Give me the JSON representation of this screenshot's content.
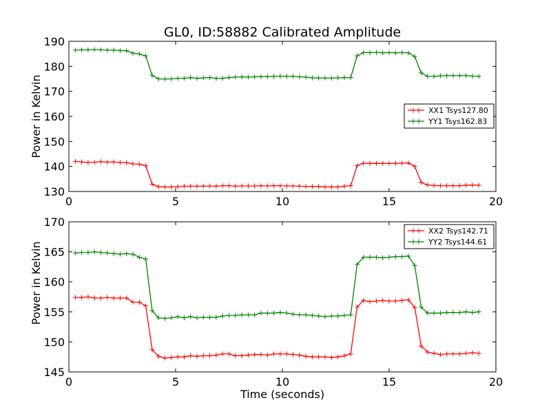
{
  "chart_data": [
    {
      "type": "line",
      "title": "GL0, ID:58882 Calibrated Amplitude",
      "xlabel": "",
      "ylabel": "Power in Kelvin",
      "xlim": [
        0,
        20
      ],
      "ylim": [
        130,
        190
      ],
      "xticks": [
        0,
        5,
        10,
        15,
        20
      ],
      "yticks": [
        130,
        140,
        150,
        160,
        170,
        180,
        190
      ],
      "grid": false,
      "legend_position": "center-right",
      "x": [
        0.3,
        0.6,
        0.9,
        1.2,
        1.5,
        1.8,
        2.1,
        2.4,
        2.7,
        3.0,
        3.3,
        3.6,
        3.9,
        4.2,
        4.5,
        4.8,
        5.1,
        5.4,
        5.7,
        6.0,
        6.3,
        6.6,
        6.9,
        7.2,
        7.5,
        7.8,
        8.1,
        8.4,
        8.7,
        9.0,
        9.3,
        9.6,
        9.9,
        10.2,
        10.5,
        10.8,
        11.1,
        11.4,
        11.7,
        12.0,
        12.3,
        12.6,
        12.9,
        13.2,
        13.5,
        13.8,
        14.1,
        14.4,
        14.7,
        15.0,
        15.3,
        15.6,
        15.9,
        16.2,
        16.5,
        16.8,
        17.1,
        17.4,
        17.7,
        18.0,
        18.3,
        18.6,
        18.9,
        19.2
      ],
      "series": [
        {
          "name": "XX1 Tsys127.80",
          "color": "#ff0000",
          "values": [
            142.0,
            141.8,
            141.6,
            141.7,
            141.9,
            141.7,
            141.8,
            141.6,
            141.5,
            141.0,
            140.9,
            140.3,
            132.9,
            131.9,
            131.8,
            131.8,
            131.9,
            132.1,
            132.1,
            132.1,
            132.1,
            132.2,
            132.1,
            132.3,
            132.3,
            132.1,
            132.2,
            132.2,
            132.2,
            132.3,
            132.2,
            132.3,
            132.3,
            132.2,
            132.2,
            132.1,
            132.0,
            132.0,
            132.0,
            131.8,
            131.8,
            131.8,
            132.1,
            132.3,
            140.3,
            141.3,
            141.2,
            141.2,
            141.2,
            141.2,
            141.2,
            141.3,
            141.4,
            140.0,
            133.6,
            132.6,
            132.4,
            132.3,
            132.3,
            132.3,
            132.3,
            132.5,
            132.5,
            132.5
          ]
        },
        {
          "name": "YY1 Tsys162.83",
          "color": "#008000",
          "values": [
            186.5,
            186.6,
            186.6,
            186.7,
            186.6,
            186.5,
            186.5,
            186.3,
            186.2,
            185.3,
            184.9,
            184.2,
            176.4,
            175.0,
            174.9,
            175.0,
            175.2,
            175.2,
            175.5,
            175.2,
            175.4,
            175.5,
            175.2,
            175.2,
            175.5,
            175.7,
            175.8,
            175.7,
            175.8,
            175.9,
            175.9,
            176.0,
            176.1,
            176.0,
            176.0,
            175.8,
            175.7,
            175.4,
            175.3,
            175.3,
            175.3,
            175.4,
            175.5,
            175.5,
            184.2,
            185.5,
            185.5,
            185.6,
            185.4,
            185.5,
            185.4,
            185.5,
            185.4,
            183.9,
            177.4,
            176.0,
            176.0,
            176.2,
            176.3,
            176.3,
            176.3,
            176.3,
            176.1,
            176.0
          ]
        }
      ]
    },
    {
      "type": "line",
      "title": "",
      "xlabel": "Time (seconds)",
      "ylabel": "Power in Kelvin",
      "xlim": [
        0,
        20
      ],
      "ylim": [
        145,
        170
      ],
      "xticks": [
        0,
        5,
        10,
        15,
        20
      ],
      "yticks": [
        145,
        150,
        155,
        160,
        165,
        170
      ],
      "grid": false,
      "legend_position": "top-right",
      "x": [
        0.3,
        0.6,
        0.9,
        1.2,
        1.5,
        1.8,
        2.1,
        2.4,
        2.7,
        3.0,
        3.3,
        3.6,
        3.9,
        4.2,
        4.5,
        4.8,
        5.1,
        5.4,
        5.7,
        6.0,
        6.3,
        6.6,
        6.9,
        7.2,
        7.5,
        7.8,
        8.1,
        8.4,
        8.7,
        9.0,
        9.3,
        9.6,
        9.9,
        10.2,
        10.5,
        10.8,
        11.1,
        11.4,
        11.7,
        12.0,
        12.3,
        12.6,
        12.9,
        13.2,
        13.5,
        13.8,
        14.1,
        14.4,
        14.7,
        15.0,
        15.3,
        15.6,
        15.9,
        16.2,
        16.5,
        16.8,
        17.1,
        17.4,
        17.7,
        18.0,
        18.3,
        18.6,
        18.9,
        19.2
      ],
      "series": [
        {
          "name": "XX2 Tsys142.71",
          "color": "#ff0000",
          "values": [
            157.4,
            157.4,
            157.5,
            157.3,
            157.3,
            157.4,
            157.3,
            157.3,
            157.3,
            156.6,
            156.6,
            156.0,
            148.7,
            147.6,
            147.3,
            147.4,
            147.5,
            147.5,
            147.7,
            147.6,
            147.7,
            147.7,
            147.8,
            148.0,
            148.0,
            147.7,
            147.7,
            147.8,
            147.9,
            147.9,
            147.8,
            148.0,
            148.0,
            148.0,
            147.9,
            147.8,
            147.6,
            147.5,
            147.5,
            147.5,
            147.4,
            147.5,
            147.7,
            148.0,
            155.8,
            156.9,
            156.7,
            156.8,
            156.9,
            156.8,
            156.8,
            156.9,
            157.0,
            155.7,
            149.3,
            148.3,
            148.1,
            147.9,
            148.0,
            148.0,
            148.0,
            148.1,
            148.2,
            148.1
          ]
        },
        {
          "name": "YY2 Tsys144.61",
          "color": "#008000",
          "values": [
            164.8,
            164.9,
            164.9,
            165.0,
            164.9,
            164.8,
            164.7,
            164.6,
            164.7,
            164.6,
            164.1,
            163.8,
            155.2,
            154.0,
            153.9,
            154.0,
            154.2,
            154.0,
            154.2,
            154.0,
            154.1,
            154.1,
            154.1,
            154.3,
            154.4,
            154.4,
            154.5,
            154.5,
            154.5,
            154.8,
            154.8,
            154.8,
            154.9,
            154.8,
            154.6,
            154.5,
            154.5,
            154.4,
            154.3,
            154.2,
            154.3,
            154.3,
            154.4,
            154.5,
            162.9,
            164.1,
            164.1,
            164.1,
            164.0,
            164.1,
            164.2,
            164.2,
            164.3,
            162.7,
            155.8,
            154.8,
            154.8,
            154.8,
            154.9,
            154.9,
            154.9,
            155.0,
            154.9,
            155.0
          ]
        }
      ]
    }
  ]
}
